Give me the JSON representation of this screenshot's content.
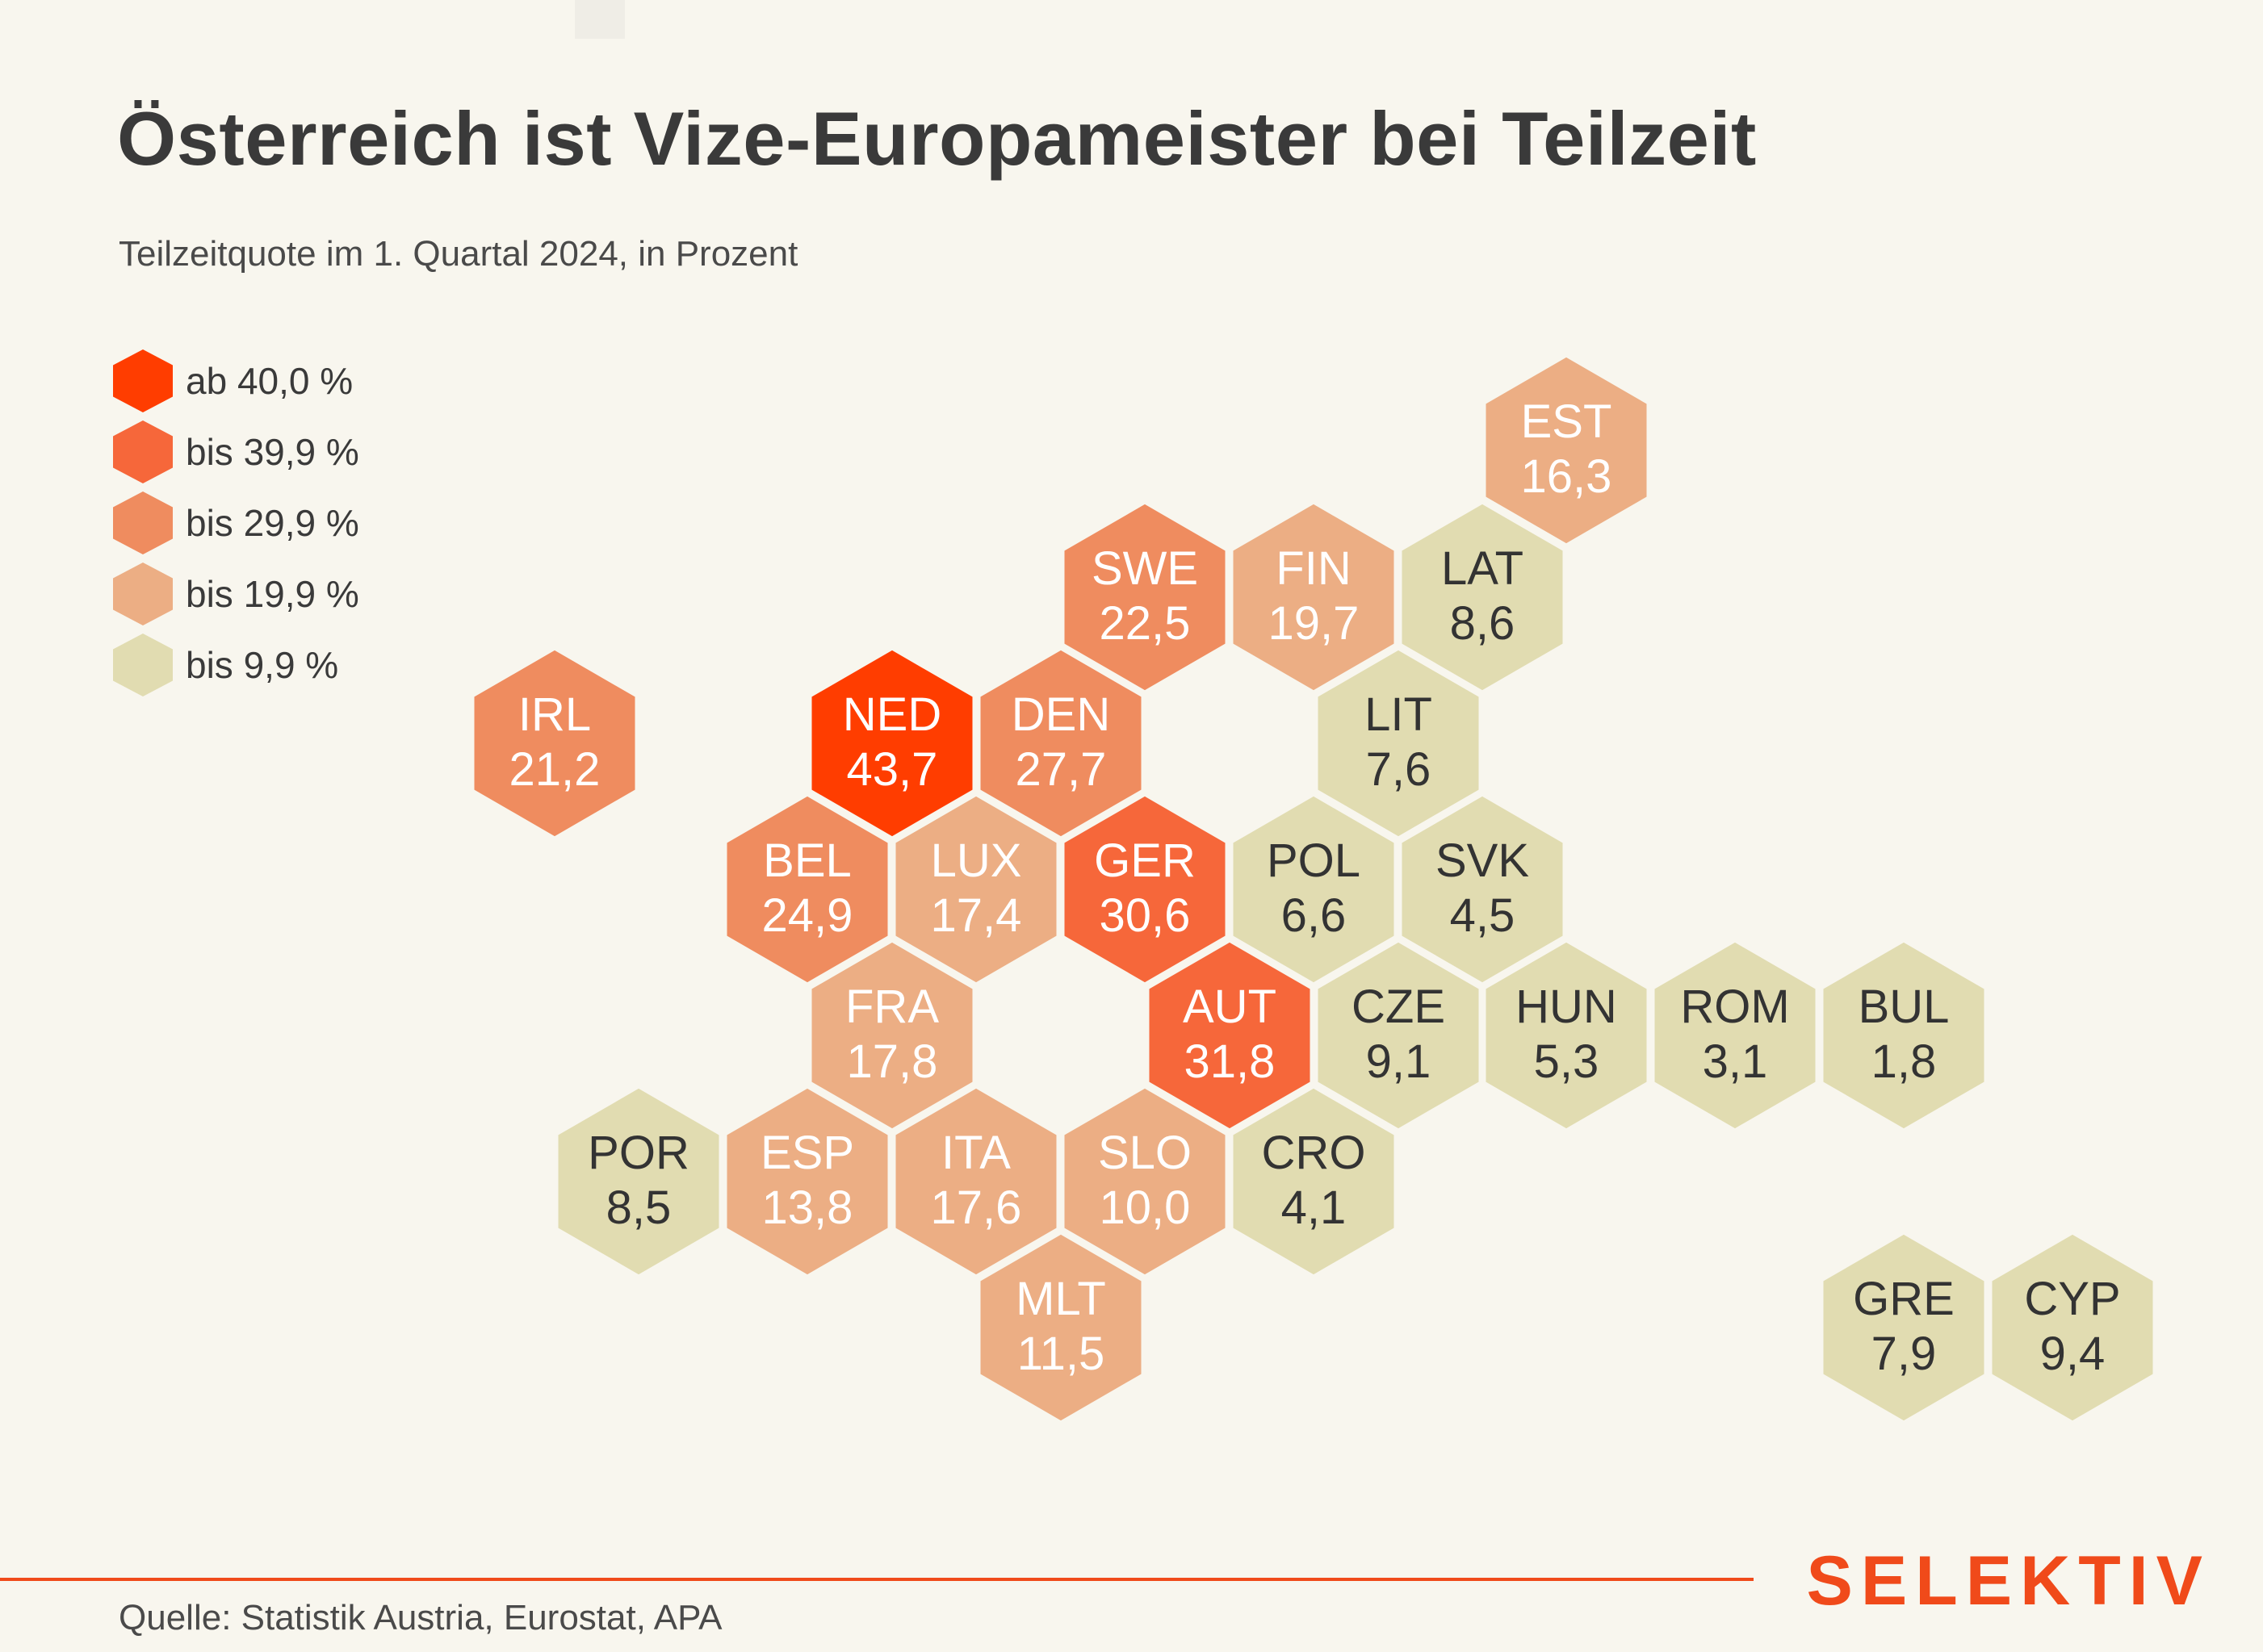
{
  "title": "Österreich ist Vize-Europameister bei Teilzeit",
  "subtitle": "Teilzeitquote im 1. Quartal 2024, in Prozent",
  "source": "Quelle: Statistik Austria, Eurostat, APA",
  "brand": "SELEKTIV",
  "colors": {
    "c40": "#ff3d00",
    "c30": "#f6673a",
    "c20": "#ef8c5f",
    "c10": "#ecae84",
    "c0": "#e1dcb1",
    "text_dark": "#333333",
    "text_light": "#ffffff"
  },
  "legend": [
    {
      "label": "ab 40,0 %",
      "color": "#ff3d00"
    },
    {
      "label": "bis 39,9 %",
      "color": "#f6673a"
    },
    {
      "label": "bis 29,9 %",
      "color": "#ef8c5f"
    },
    {
      "label": "bis 19,9 %",
      "color": "#ecae84"
    },
    {
      "label": "bis 9,9 %",
      "color": "#e1dcb1"
    }
  ],
  "chart_data": {
    "type": "hex-map",
    "unit": "Prozent",
    "countries": [
      {
        "code": "EST",
        "label": "16,3",
        "value": 16.3
      },
      {
        "code": "SWE",
        "label": "22,5",
        "value": 22.5
      },
      {
        "code": "FIN",
        "label": "19,7",
        "value": 19.7
      },
      {
        "code": "LAT",
        "label": "8,6",
        "value": 8.6
      },
      {
        "code": "IRL",
        "label": "21,2",
        "value": 21.2
      },
      {
        "code": "NED",
        "label": "43,7",
        "value": 43.7
      },
      {
        "code": "DEN",
        "label": "27,7",
        "value": 27.7
      },
      {
        "code": "LIT",
        "label": "7,6",
        "value": 7.6
      },
      {
        "code": "BEL",
        "label": "24,9",
        "value": 24.9
      },
      {
        "code": "LUX",
        "label": "17,4",
        "value": 17.4
      },
      {
        "code": "GER",
        "label": "30,6",
        "value": 30.6
      },
      {
        "code": "POL",
        "label": "6,6",
        "value": 6.6
      },
      {
        "code": "SVK",
        "label": "4,5",
        "value": 4.5
      },
      {
        "code": "FRA",
        "label": "17,8",
        "value": 17.8
      },
      {
        "code": "AUT",
        "label": "31,8",
        "value": 31.8
      },
      {
        "code": "CZE",
        "label": "9,1",
        "value": 9.1
      },
      {
        "code": "HUN",
        "label": "5,3",
        "value": 5.3
      },
      {
        "code": "ROM",
        "label": "3,1",
        "value": 3.1
      },
      {
        "code": "BUL",
        "label": "1,8",
        "value": 1.8
      },
      {
        "code": "POR",
        "label": "8,5",
        "value": 8.5
      },
      {
        "code": "ESP",
        "label": "13,8",
        "value": 13.8
      },
      {
        "code": "ITA",
        "label": "17,6",
        "value": 17.6
      },
      {
        "code": "SLO",
        "label": "10,0",
        "value": 10.0
      },
      {
        "code": "CRO",
        "label": "4,1",
        "value": 4.1
      },
      {
        "code": "MLT",
        "label": "11,5",
        "value": 11.5
      },
      {
        "code": "GRE",
        "label": "7,9",
        "value": 7.9
      },
      {
        "code": "CYP",
        "label": "9,4",
        "value": 9.4
      }
    ]
  }
}
